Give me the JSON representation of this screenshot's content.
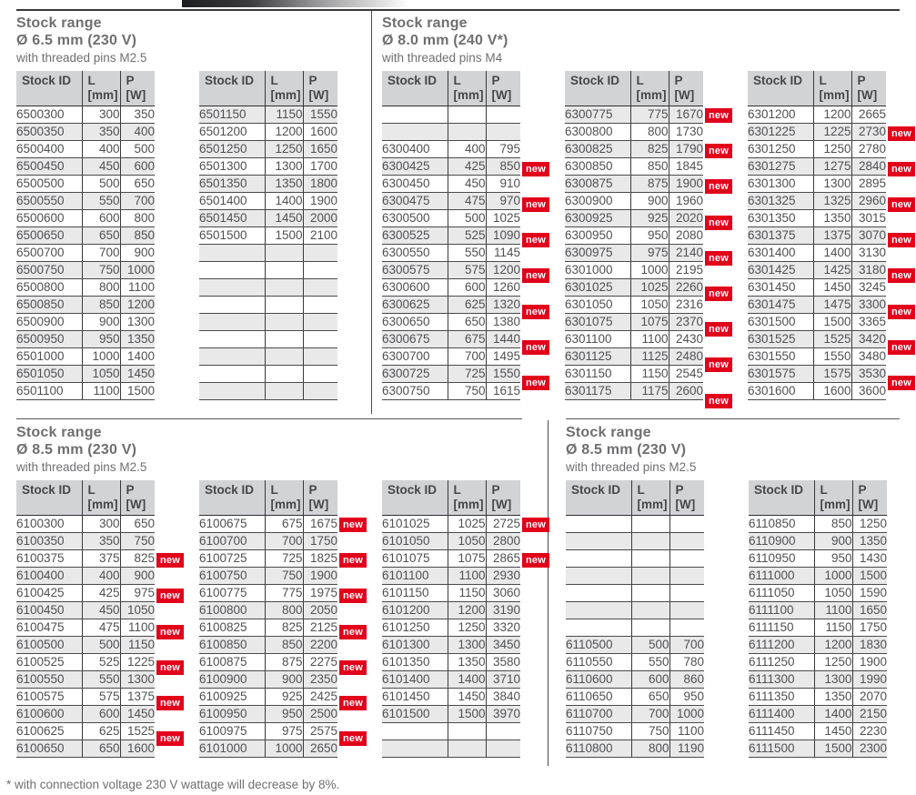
{
  "page": {
    "footnote": "* with connection voltage 230 V wattage will decrease by 8%.",
    "badge_label": "new",
    "colors": {
      "badge_bg": "#e2001a",
      "header_bg": "#d2d3d5",
      "alt_row_bg": "#e9e9ea",
      "text": "#4f5052",
      "heading": "#6e6f71"
    }
  },
  "columns": {
    "stock_id": "Stock ID",
    "l_line1": "L",
    "l_line2": "[mm]",
    "p_line1": "P",
    "p_line2": "[W]"
  },
  "sections": [
    {
      "title": "Stock range",
      "diameter": "Ø 6.5 mm (230 V)",
      "pins": "with threaded pins M2.5",
      "tables": [
        [
          [
            "6500300",
            "300",
            "350"
          ],
          [
            "6500350",
            "350",
            "400"
          ],
          [
            "6500400",
            "400",
            "500"
          ],
          [
            "6500450",
            "450",
            "600"
          ],
          [
            "6500500",
            "500",
            "650"
          ],
          [
            "6500550",
            "550",
            "700"
          ],
          [
            "6500600",
            "600",
            "800"
          ],
          [
            "6500650",
            "650",
            "850"
          ],
          [
            "6500700",
            "700",
            "900"
          ],
          [
            "6500750",
            "750",
            "1000"
          ],
          [
            "6500800",
            "800",
            "1100"
          ],
          [
            "6500850",
            "850",
            "1200"
          ],
          [
            "6500900",
            "900",
            "1300"
          ],
          [
            "6500950",
            "950",
            "1350"
          ],
          [
            "6501000",
            "1000",
            "1400"
          ],
          [
            "6501050",
            "1050",
            "1450"
          ],
          [
            "6501100",
            "1100",
            "1500"
          ]
        ],
        [
          [
            "6501150",
            "1150",
            "1550"
          ],
          [
            "6501200",
            "1200",
            "1600"
          ],
          [
            "6501250",
            "1250",
            "1650"
          ],
          [
            "6501300",
            "1300",
            "1700"
          ],
          [
            "6501350",
            "1350",
            "1800"
          ],
          [
            "6501400",
            "1400",
            "1900"
          ],
          [
            "6501450",
            "1450",
            "2000"
          ],
          [
            "6501500",
            "1500",
            "2100"
          ],
          [
            "",
            "",
            ""
          ],
          [
            "",
            "",
            ""
          ],
          [
            "",
            "",
            ""
          ],
          [
            "",
            "",
            ""
          ],
          [
            "",
            "",
            ""
          ],
          [
            "",
            "",
            ""
          ],
          [
            "",
            "",
            ""
          ],
          [
            "",
            "",
            ""
          ],
          [
            "",
            "",
            ""
          ]
        ]
      ]
    },
    {
      "title": "Stock range",
      "diameter": "Ø 8.0 mm (240 V*)",
      "pins": "with threaded pins M4",
      "tables": [
        [
          [
            "",
            "",
            ""
          ],
          [
            "",
            "",
            ""
          ],
          [
            "6300400",
            "400",
            "795"
          ],
          [
            "6300425",
            "425",
            "850",
            1
          ],
          [
            "6300450",
            "450",
            "910"
          ],
          [
            "6300475",
            "475",
            "970",
            1
          ],
          [
            "6300500",
            "500",
            "1025"
          ],
          [
            "6300525",
            "525",
            "1090",
            1
          ],
          [
            "6300550",
            "550",
            "1145"
          ],
          [
            "6300575",
            "575",
            "1200",
            1
          ],
          [
            "6300600",
            "600",
            "1260"
          ],
          [
            "6300625",
            "625",
            "1320",
            1
          ],
          [
            "6300650",
            "650",
            "1380"
          ],
          [
            "6300675",
            "675",
            "1440",
            1
          ],
          [
            "6300700",
            "700",
            "1495"
          ],
          [
            "6300725",
            "725",
            "1550",
            1
          ],
          [
            "6300750",
            "750",
            "1615"
          ]
        ],
        [
          [
            "6300775",
            "775",
            "1670",
            1
          ],
          [
            "6300800",
            "800",
            "1730"
          ],
          [
            "6300825",
            "825",
            "1790",
            1
          ],
          [
            "6300850",
            "850",
            "1845"
          ],
          [
            "6300875",
            "875",
            "1900",
            1
          ],
          [
            "6300900",
            "900",
            "1960"
          ],
          [
            "6300925",
            "925",
            "2020",
            1
          ],
          [
            "6300950",
            "950",
            "2080"
          ],
          [
            "6300975",
            "975",
            "2140",
            1
          ],
          [
            "6301000",
            "1000",
            "2195"
          ],
          [
            "6301025",
            "1025",
            "2260",
            1
          ],
          [
            "6301050",
            "1050",
            "2316"
          ],
          [
            "6301075",
            "1075",
            "2370",
            1
          ],
          [
            "6301100",
            "1100",
            "2430"
          ],
          [
            "6301125",
            "1125",
            "2480",
            1
          ],
          [
            "6301150",
            "1150",
            "2545"
          ],
          [
            "6301175",
            "1175",
            "2600",
            1
          ]
        ],
        [
          [
            "6301200",
            "1200",
            "2665"
          ],
          [
            "6301225",
            "1225",
            "2730",
            1
          ],
          [
            "6301250",
            "1250",
            "2780"
          ],
          [
            "6301275",
            "1275",
            "2840",
            1
          ],
          [
            "6301300",
            "1300",
            "2895"
          ],
          [
            "6301325",
            "1325",
            "2960",
            1
          ],
          [
            "6301350",
            "1350",
            "3015"
          ],
          [
            "6301375",
            "1375",
            "3070",
            1
          ],
          [
            "6301400",
            "1400",
            "3130"
          ],
          [
            "6301425",
            "1425",
            "3180",
            1
          ],
          [
            "6301450",
            "1450",
            "3245"
          ],
          [
            "6301475",
            "1475",
            "3300",
            1
          ],
          [
            "6301500",
            "1500",
            "3365"
          ],
          [
            "6301525",
            "1525",
            "3420",
            1
          ],
          [
            "6301550",
            "1550",
            "3480"
          ],
          [
            "6301575",
            "1575",
            "3530",
            1
          ],
          [
            "6301600",
            "1600",
            "3600"
          ]
        ]
      ]
    },
    {
      "title": "Stock range",
      "diameter": "Ø 8.5 mm (230 V)",
      "pins": "with threaded pins M2.5",
      "tables": [
        [
          [
            "6100300",
            "300",
            "650"
          ],
          [
            "6100350",
            "350",
            "750"
          ],
          [
            "6100375",
            "375",
            "825",
            1
          ],
          [
            "6100400",
            "400",
            "900"
          ],
          [
            "6100425",
            "425",
            "975",
            1
          ],
          [
            "6100450",
            "450",
            "1050"
          ],
          [
            "6100475",
            "475",
            "1100",
            1
          ],
          [
            "6100500",
            "500",
            "1150"
          ],
          [
            "6100525",
            "525",
            "1225",
            1
          ],
          [
            "6100550",
            "550",
            "1300"
          ],
          [
            "6100575",
            "575",
            "1375",
            1
          ],
          [
            "6100600",
            "600",
            "1450"
          ],
          [
            "6100625",
            "625",
            "1525",
            1
          ],
          [
            "6100650",
            "650",
            "1600"
          ]
        ],
        [
          [
            "6100675",
            "675",
            "1675",
            1
          ],
          [
            "6100700",
            "700",
            "1750"
          ],
          [
            "6100725",
            "725",
            "1825",
            1
          ],
          [
            "6100750",
            "750",
            "1900"
          ],
          [
            "6100775",
            "775",
            "1975",
            1
          ],
          [
            "6100800",
            "800",
            "2050"
          ],
          [
            "6100825",
            "825",
            "2125",
            1
          ],
          [
            "6100850",
            "850",
            "2200"
          ],
          [
            "6100875",
            "875",
            "2275",
            1
          ],
          [
            "6100900",
            "900",
            "2350"
          ],
          [
            "6100925",
            "925",
            "2425",
            1
          ],
          [
            "6100950",
            "950",
            "2500"
          ],
          [
            "6100975",
            "975",
            "2575",
            1
          ],
          [
            "6101000",
            "1000",
            "2650"
          ]
        ],
        [
          [
            "6101025",
            "1025",
            "2725",
            1
          ],
          [
            "6101050",
            "1050",
            "2800"
          ],
          [
            "6101075",
            "1075",
            "2865",
            1
          ],
          [
            "6101100",
            "1100",
            "2930"
          ],
          [
            "6101150",
            "1150",
            "3060"
          ],
          [
            "6101200",
            "1200",
            "3190"
          ],
          [
            "6101250",
            "1250",
            "3320"
          ],
          [
            "6101300",
            "1300",
            "3450"
          ],
          [
            "6101350",
            "1350",
            "3580"
          ],
          [
            "6101400",
            "1400",
            "3710"
          ],
          [
            "6101450",
            "1450",
            "3840"
          ],
          [
            "6101500",
            "1500",
            "3970"
          ],
          [
            "",
            "",
            ""
          ],
          [
            "",
            "",
            ""
          ]
        ]
      ]
    },
    {
      "title": "Stock range",
      "diameter": "Ø 8.5 mm (230 V)",
      "pins": "with threaded pins M2.5",
      "tables": [
        [
          [
            "",
            "",
            ""
          ],
          [
            "",
            "",
            ""
          ],
          [
            "",
            "",
            ""
          ],
          [
            "",
            "",
            ""
          ],
          [
            "",
            "",
            ""
          ],
          [
            "",
            "",
            ""
          ],
          [
            "",
            "",
            ""
          ],
          [
            "6110500",
            "500",
            "700"
          ],
          [
            "6110550",
            "550",
            "780"
          ],
          [
            "6110600",
            "600",
            "860"
          ],
          [
            "6110650",
            "650",
            "950"
          ],
          [
            "6110700",
            "700",
            "1000"
          ],
          [
            "6110750",
            "750",
            "1100"
          ],
          [
            "6110800",
            "800",
            "1190"
          ]
        ],
        [
          [
            "6110850",
            "850",
            "1250"
          ],
          [
            "6110900",
            "900",
            "1350"
          ],
          [
            "6110950",
            "950",
            "1430"
          ],
          [
            "6111000",
            "1000",
            "1500"
          ],
          [
            "6111050",
            "1050",
            "1590"
          ],
          [
            "6111100",
            "1100",
            "1650"
          ],
          [
            "6111150",
            "1150",
            "1750"
          ],
          [
            "6111200",
            "1200",
            "1830"
          ],
          [
            "6111250",
            "1250",
            "1900"
          ],
          [
            "6111300",
            "1300",
            "1990"
          ],
          [
            "6111350",
            "1350",
            "2070"
          ],
          [
            "6111400",
            "1400",
            "2150"
          ],
          [
            "6111450",
            "1450",
            "2230"
          ],
          [
            "6111500",
            "1500",
            "2300"
          ]
        ]
      ]
    }
  ]
}
